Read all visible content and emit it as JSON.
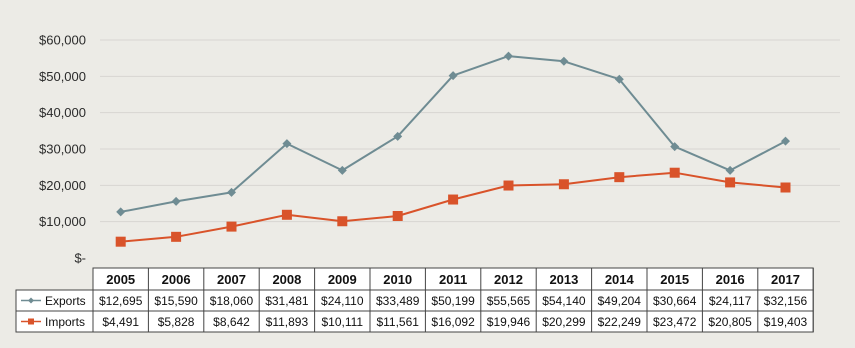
{
  "chart_data": {
    "type": "line",
    "categories": [
      "2005",
      "2006",
      "2007",
      "2008",
      "2009",
      "2010",
      "2011",
      "2012",
      "2013",
      "2014",
      "2015",
      "2016",
      "2017"
    ],
    "ylim": [
      0,
      60000
    ],
    "yticks": [
      {
        "value": 0,
        "label": "$-"
      },
      {
        "value": 10000,
        "label": "$10,000"
      },
      {
        "value": 20000,
        "label": "$20,000"
      },
      {
        "value": 30000,
        "label": "$30,000"
      },
      {
        "value": 40000,
        "label": "$40,000"
      },
      {
        "value": 50000,
        "label": "$50,000"
      },
      {
        "value": 60000,
        "label": "$60,000"
      }
    ],
    "grid": true,
    "legend": "data-table",
    "series": [
      {
        "name": "Exports",
        "color": "#6f8c93",
        "marker": "diamond",
        "values": [
          12695,
          15590,
          18060,
          31481,
          24110,
          33489,
          50199,
          55565,
          54140,
          49204,
          30664,
          24117,
          32156
        ],
        "labels": [
          "$12,695",
          "$15,590",
          "$18,060",
          "$31,481",
          "$24,110",
          "$33,489",
          "$50,199",
          "$55,565",
          "$54,140",
          "$49,204",
          "$30,664",
          "$24,117",
          "$32,156"
        ]
      },
      {
        "name": "Imports",
        "color": "#d9532a",
        "marker": "square",
        "values": [
          4491,
          5828,
          8642,
          11893,
          10111,
          11561,
          16092,
          19946,
          20299,
          22249,
          23472,
          20805,
          19403
        ],
        "labels": [
          "$4,491",
          "$5,828",
          "$8,642",
          "$11,893",
          "$10,111",
          "$11,561",
          "$16,092",
          "$19,946",
          "$20,299",
          "$22,249",
          "$23,472",
          "$20,805",
          "$19,403"
        ]
      }
    ]
  }
}
